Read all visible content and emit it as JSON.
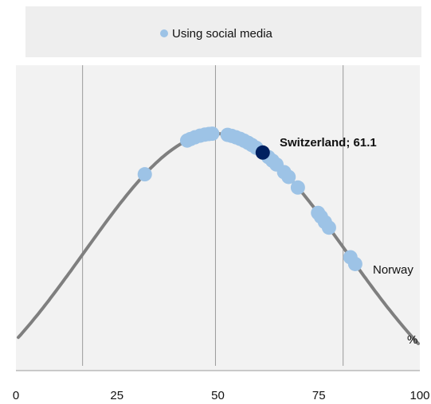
{
  "chart_data": {
    "type": "scatter",
    "legend": {
      "entries": [
        {
          "label": "Using social media",
          "color": "#9DC3E6"
        }
      ],
      "placement": "top-center"
    },
    "xlim": [
      0,
      100
    ],
    "x_ticks": [
      0,
      25,
      50,
      75,
      100
    ],
    "unit_label": "%",
    "grid": {
      "vertical_lines_at": [
        16.5,
        49.4,
        81
      ]
    },
    "curve": {
      "type": "normal-distribution",
      "mean": 49.4,
      "sd": 32.5,
      "color": "#7F7F7F"
    },
    "series": [
      {
        "name": "Using social media",
        "color": "#9DC3E6",
        "x": [
          31.9,
          42.4,
          43.2,
          44.3,
          45.6,
          46.8,
          47.8,
          48.6,
          52.4,
          53.4,
          54.5,
          55.5,
          56.5,
          57.5,
          58.4,
          59.5,
          62.5,
          63.5,
          64.5,
          66.4,
          67.5,
          69.8,
          74.8,
          75.5,
          76.5,
          77.5,
          82.8,
          84.0
        ]
      }
    ],
    "highlight": {
      "label": "Switzerland",
      "value": 61.1,
      "color": "#002060"
    },
    "annotations": [
      {
        "text": "Switzerland; 61.1",
        "bold": true,
        "x": 61.1
      },
      {
        "text": "Norway",
        "bold": false,
        "x": 84.0
      }
    ]
  }
}
